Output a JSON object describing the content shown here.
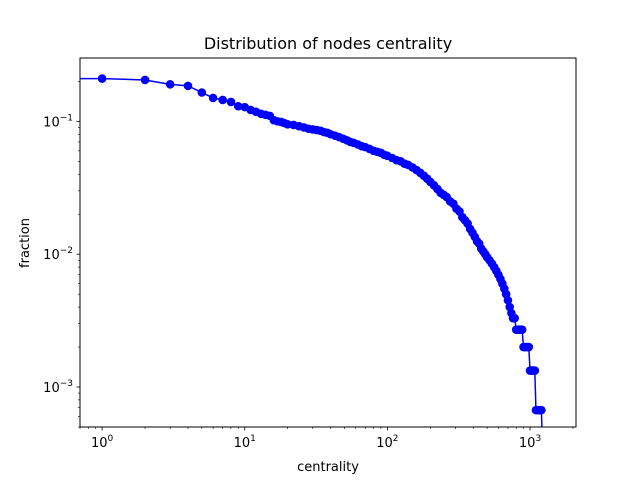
{
  "chart_data": {
    "type": "line",
    "title": "Distribution of nodes centrality",
    "xlabel": "centrality",
    "ylabel": "fraction",
    "xscale": "log",
    "yscale": "log",
    "xlim": [
      0.7,
      2100
    ],
    "ylim": [
      0.0005,
      0.3
    ],
    "grid": false,
    "x_tick_labels": [
      "10^0",
      "10^1",
      "10^2",
      "10^3"
    ],
    "y_tick_labels": [
      "10^-3",
      "10^-2",
      "10^-1"
    ],
    "line_color": "#0000ff",
    "marker_color": "#0000ff",
    "series": [
      {
        "x": [
          0.7,
          1,
          2,
          3,
          4,
          5,
          6,
          7,
          8,
          9,
          10,
          11,
          12,
          13,
          14,
          15,
          16,
          17,
          18,
          19,
          20,
          22,
          24,
          26,
          28,
          30,
          32,
          34,
          36,
          38,
          40,
          43,
          46,
          49,
          52,
          55,
          58,
          62,
          66,
          70,
          75,
          80,
          85,
          90,
          95,
          100,
          108,
          116,
          124,
          132,
          140,
          150,
          160,
          170,
          180,
          190,
          200,
          212,
          224,
          236,
          248,
          260,
          275,
          290,
          305,
          320,
          335,
          350,
          365,
          380,
          395,
          410,
          425,
          440,
          455,
          470,
          485,
          500,
          520,
          540,
          560,
          580,
          600,
          620,
          640,
          660,
          680,
          700,
          720,
          740,
          760,
          780,
          800,
          820,
          840,
          860,
          880,
          900,
          920,
          940,
          960,
          980,
          1000,
          1020,
          1040,
          1060,
          1080,
          1100,
          1120,
          1140,
          1160,
          1180,
          1200,
          1220
        ],
        "y": [
          0.21,
          0.21,
          0.205,
          0.19,
          0.185,
          0.165,
          0.15,
          0.145,
          0.14,
          0.13,
          0.128,
          0.122,
          0.118,
          0.114,
          0.112,
          0.11,
          0.102,
          0.1,
          0.099,
          0.097,
          0.095,
          0.094,
          0.092,
          0.09,
          0.088,
          0.087,
          0.086,
          0.085,
          0.083,
          0.082,
          0.08,
          0.078,
          0.076,
          0.074,
          0.072,
          0.07,
          0.069,
          0.067,
          0.065,
          0.064,
          0.062,
          0.06,
          0.059,
          0.058,
          0.056,
          0.055,
          0.053,
          0.051,
          0.05,
          0.048,
          0.047,
          0.045,
          0.043,
          0.041,
          0.039,
          0.037,
          0.035,
          0.033,
          0.031,
          0.029,
          0.028,
          0.027,
          0.025,
          0.024,
          0.022,
          0.021,
          0.019,
          0.018,
          0.017,
          0.0155,
          0.0145,
          0.0135,
          0.0125,
          0.012,
          0.011,
          0.0105,
          0.01,
          0.0095,
          0.009,
          0.0085,
          0.008,
          0.0075,
          0.007,
          0.0065,
          0.006,
          0.0055,
          0.005,
          0.0045,
          0.004,
          0.0036,
          0.0033,
          0.0033,
          0.0027,
          0.0027,
          0.0027,
          0.0027,
          0.0027,
          0.002,
          0.002,
          0.002,
          0.002,
          0.002,
          0.00133,
          0.00133,
          0.00133,
          0.00133,
          0.00133,
          0.00067,
          0.00067,
          0.00067,
          0.00067,
          0.00067,
          0.00067,
          0.0004
        ],
        "markers": [
          false,
          true,
          true,
          true,
          true,
          true,
          true,
          true,
          true,
          true,
          true,
          true,
          true,
          true,
          true,
          true,
          true,
          true,
          true,
          true,
          true,
          true,
          true,
          true,
          true,
          true,
          true,
          true,
          true,
          true,
          true,
          true,
          true,
          true,
          true,
          true,
          true,
          true,
          true,
          true,
          true,
          true,
          true,
          true,
          true,
          true,
          true,
          true,
          true,
          true,
          true,
          true,
          true,
          true,
          true,
          true,
          true,
          true,
          true,
          true,
          true,
          true,
          true,
          true,
          true,
          true,
          true,
          true,
          true,
          true,
          true,
          true,
          true,
          true,
          true,
          true,
          true,
          true,
          true,
          true,
          true,
          true,
          true,
          true,
          true,
          true,
          true,
          true,
          true,
          true,
          true,
          true,
          true,
          true,
          true,
          true,
          true,
          true,
          true,
          true,
          true,
          true,
          true,
          true,
          true,
          true,
          true,
          true,
          true,
          true,
          true,
          true,
          true,
          false
        ]
      }
    ]
  }
}
